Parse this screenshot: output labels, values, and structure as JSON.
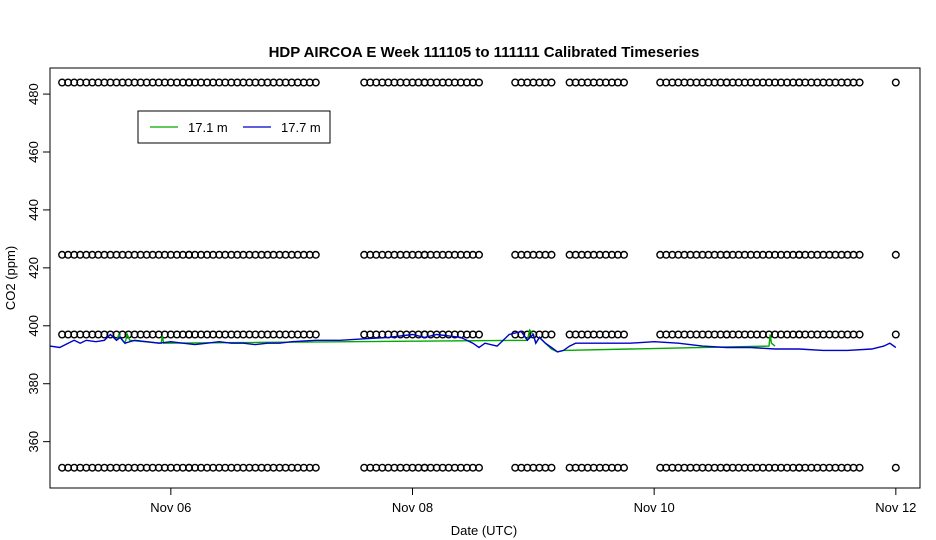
{
  "chart_data": {
    "type": "line",
    "title": "HDP AIRCOA E  Week 111105 to 111111  Calibrated Timeseries",
    "xlabel": "Date (UTC)",
    "ylabel": "CO2 (ppm)",
    "x_start": "2011-11-05",
    "xlim": [
      0.0,
      7.2
    ],
    "ylim": [
      344,
      489
    ],
    "x_ticks": [
      {
        "x": 1,
        "label": "Nov 06"
      },
      {
        "x": 3,
        "label": "Nov 08"
      },
      {
        "x": 5,
        "label": "Nov 10"
      },
      {
        "x": 7,
        "label": "Nov 12"
      }
    ],
    "y_ticks": [
      360,
      380,
      400,
      420,
      440,
      460,
      480
    ],
    "legend": {
      "position": "top-left",
      "entries": [
        {
          "label": "17.1 m",
          "color": "#00aa00"
        },
        {
          "label": "17.7 m",
          "color": "#0000cc"
        }
      ]
    },
    "series": [
      {
        "name": "17.7 m",
        "color": "#0000cc",
        "x": [
          0.0,
          0.08,
          0.15,
          0.2,
          0.25,
          0.3,
          0.38,
          0.45,
          0.5,
          0.55,
          0.58,
          0.62,
          0.7,
          0.8,
          0.9,
          1.0,
          1.1,
          1.2,
          1.3,
          1.4,
          1.5,
          1.6,
          1.7,
          1.8,
          1.9,
          2.0,
          2.2,
          2.4,
          2.6,
          2.8,
          3.0,
          3.1,
          3.2,
          3.3,
          3.4,
          3.5,
          3.55,
          3.6,
          3.7,
          3.8,
          3.9,
          3.95,
          4.0,
          4.02,
          4.05,
          4.1,
          4.15,
          4.2,
          4.25,
          4.3,
          4.35,
          4.4,
          4.5,
          4.6,
          4.8,
          5.0,
          5.2,
          5.4,
          5.6,
          5.8,
          6.0,
          6.2,
          6.4,
          6.6,
          6.8,
          6.9,
          6.95,
          7.0
        ],
        "y": [
          393,
          392.5,
          394,
          395,
          394,
          395,
          394.5,
          395,
          397,
          395,
          396,
          394,
          395,
          394.5,
          394,
          394.5,
          394,
          393.5,
          394,
          394.5,
          394,
          394,
          393.5,
          394,
          394,
          394.5,
          395,
          395,
          395.5,
          396,
          397,
          396,
          397,
          396.5,
          396,
          394,
          392.5,
          394,
          393,
          397,
          398,
          395,
          397,
          394,
          396,
          394,
          392.5,
          391,
          391.5,
          393,
          394,
          394,
          394,
          394,
          394,
          394.5,
          394,
          393,
          392.5,
          392.5,
          392,
          392,
          391.5,
          391.5,
          392,
          393,
          394,
          392.5
        ]
      },
      {
        "name": "17.1 m",
        "color": "#00aa00",
        "x": [
          0.55,
          0.57,
          0.58,
          0.62,
          0.64,
          0.66,
          0.92,
          0.93,
          0.94,
          3.95,
          3.97,
          4.0,
          4.02,
          4.05,
          4.1,
          4.15,
          4.2,
          4.25,
          5.95,
          5.96,
          5.97,
          6.0
        ],
        "y": [
          395,
          397,
          396,
          394,
          397,
          395,
          394,
          396.5,
          394,
          395,
          398.5,
          397,
          394,
          396,
          394,
          392,
          391,
          391.5,
          393,
          397,
          394,
          393
        ]
      }
    ],
    "calibration_points": {
      "levels": [
        351,
        397,
        424.5,
        484
      ],
      "segments": [
        [
          0.1,
          1.15
        ],
        [
          1.15,
          2.2
        ],
        [
          2.6,
          3.1
        ],
        [
          3.1,
          3.55
        ],
        [
          3.85,
          4.15
        ],
        [
          4.3,
          4.75
        ],
        [
          5.05,
          5.6
        ],
        [
          5.6,
          6.2
        ],
        [
          6.2,
          6.7
        ]
      ],
      "step": 0.05,
      "last_x": 7.0
    }
  }
}
